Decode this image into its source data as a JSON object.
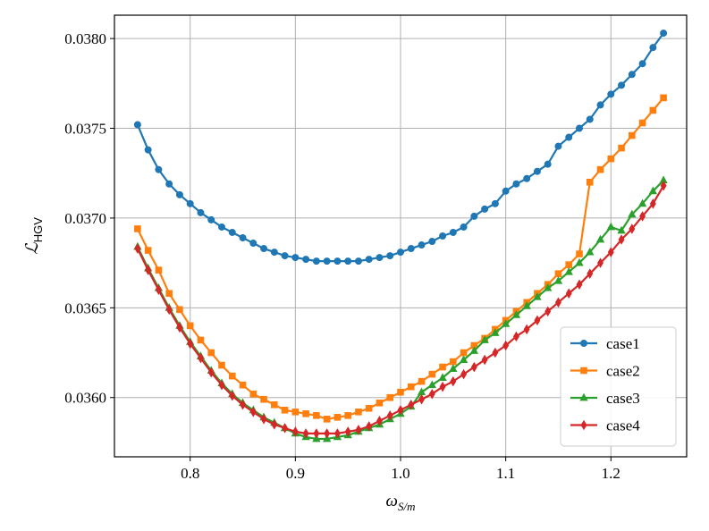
{
  "chart_data": {
    "type": "line",
    "title": "",
    "xlabel": "ω",
    "xlabel_sub": "S/m",
    "ylabel": "ℒ",
    "ylabel_sub": "HGV",
    "xlim": [
      0.728,
      1.272
    ],
    "ylim": [
      0.03567,
      0.03813
    ],
    "xticks": [
      0.8,
      0.9,
      1.0,
      1.1,
      1.2
    ],
    "xtick_labels": [
      "0.8",
      "0.9",
      "1.0",
      "1.1",
      "1.2"
    ],
    "yticks": [
      0.036,
      0.0365,
      0.037,
      0.0375,
      0.038
    ],
    "ytick_labels": [
      "0.0360",
      "0.0365",
      "0.0370",
      "0.0375",
      "0.0380"
    ],
    "grid": true,
    "legend_position": "lower-right",
    "x": [
      0.75,
      0.76,
      0.77,
      0.78,
      0.79,
      0.8,
      0.81,
      0.82,
      0.83,
      0.84,
      0.85,
      0.86,
      0.87,
      0.88,
      0.89,
      0.9,
      0.91,
      0.92,
      0.93,
      0.94,
      0.95,
      0.96,
      0.97,
      0.98,
      0.99,
      1.0,
      1.01,
      1.02,
      1.03,
      1.04,
      1.05,
      1.06,
      1.07,
      1.08,
      1.09,
      1.1,
      1.11,
      1.12,
      1.13,
      1.14,
      1.15,
      1.16,
      1.17,
      1.18,
      1.19,
      1.2,
      1.21,
      1.22,
      1.23,
      1.24,
      1.25
    ],
    "series": [
      {
        "name": "case1",
        "color": "#1f77b4",
        "marker": "circle",
        "values": [
          0.03752,
          0.03738,
          0.03727,
          0.03719,
          0.03713,
          0.03708,
          0.03703,
          0.03699,
          0.03695,
          0.03692,
          0.03689,
          0.03686,
          0.03683,
          0.03681,
          0.03679,
          0.03678,
          0.03677,
          0.03676,
          0.03676,
          0.03676,
          0.03676,
          0.03676,
          0.03677,
          0.03678,
          0.03679,
          0.03681,
          0.03683,
          0.03685,
          0.03687,
          0.0369,
          0.03692,
          0.03695,
          0.03701,
          0.03705,
          0.03708,
          0.03715,
          0.03719,
          0.03722,
          0.03726,
          0.0373,
          0.0374,
          0.03745,
          0.0375,
          0.03755,
          0.03763,
          0.03769,
          0.03774,
          0.0378,
          0.03786,
          0.03795,
          0.03803
        ]
      },
      {
        "name": "case2",
        "color": "#ff7f0e",
        "marker": "square",
        "values": [
          0.03694,
          0.03682,
          0.03671,
          0.03658,
          0.03649,
          0.0364,
          0.03632,
          0.03625,
          0.03618,
          0.03612,
          0.03607,
          0.03602,
          0.03599,
          0.03596,
          0.03593,
          0.03592,
          0.03591,
          0.0359,
          0.03588,
          0.03589,
          0.0359,
          0.03592,
          0.03594,
          0.03597,
          0.036,
          0.03603,
          0.03606,
          0.03609,
          0.03613,
          0.03617,
          0.0362,
          0.03625,
          0.03629,
          0.03633,
          0.03638,
          0.03643,
          0.03648,
          0.03653,
          0.03658,
          0.03663,
          0.03669,
          0.03674,
          0.0368,
          0.0372,
          0.03727,
          0.03733,
          0.03739,
          0.03746,
          0.03753,
          0.0376,
          0.03767
        ]
      },
      {
        "name": "case3",
        "color": "#2ca02c",
        "marker": "triangle",
        "values": [
          0.03684,
          0.03672,
          0.03661,
          0.0365,
          0.0364,
          0.03631,
          0.03623,
          0.03615,
          0.03608,
          0.03602,
          0.03597,
          0.03593,
          0.03589,
          0.03586,
          0.03583,
          0.0358,
          0.03578,
          0.03577,
          0.03577,
          0.03578,
          0.03579,
          0.03581,
          0.03583,
          0.03585,
          0.03588,
          0.03591,
          0.03595,
          0.03603,
          0.03607,
          0.03611,
          0.03616,
          0.03621,
          0.03626,
          0.03632,
          0.03636,
          0.03641,
          0.03646,
          0.03651,
          0.03656,
          0.03661,
          0.03665,
          0.0367,
          0.03675,
          0.03681,
          0.03688,
          0.03695,
          0.03693,
          0.03702,
          0.03708,
          0.03715,
          0.03721
        ]
      },
      {
        "name": "case4",
        "color": "#d62728",
        "marker": "diamond",
        "values": [
          0.03683,
          0.03671,
          0.0366,
          0.03649,
          0.03639,
          0.0363,
          0.03622,
          0.03614,
          0.03607,
          0.03601,
          0.03596,
          0.03592,
          0.03588,
          0.03585,
          0.03583,
          0.03581,
          0.0358,
          0.0358,
          0.0358,
          0.0358,
          0.03581,
          0.03582,
          0.03584,
          0.03587,
          0.0359,
          0.03593,
          0.03596,
          0.03599,
          0.03602,
          0.03606,
          0.03609,
          0.03613,
          0.03617,
          0.03621,
          0.03625,
          0.03629,
          0.03634,
          0.03638,
          0.03643,
          0.03648,
          0.03653,
          0.03658,
          0.03663,
          0.03669,
          0.03675,
          0.03681,
          0.03688,
          0.03694,
          0.03701,
          0.03708,
          0.03718
        ]
      }
    ]
  }
}
